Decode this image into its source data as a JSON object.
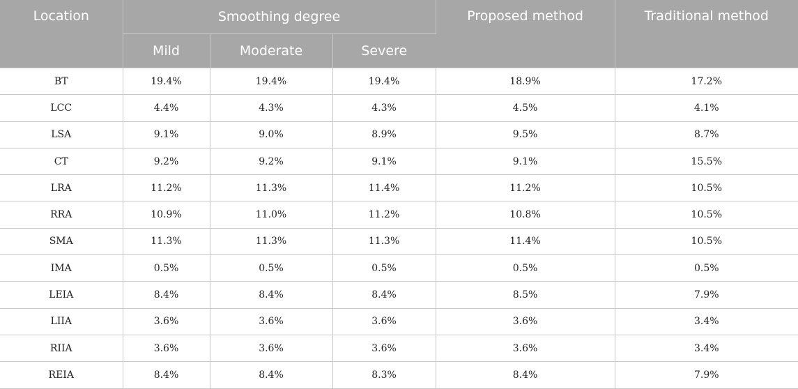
{
  "headers": {
    "location": "Location",
    "smoothing_degree": "Smoothing degree",
    "mild": "Mild",
    "moderate": "Moderate",
    "severe": "Severe",
    "proposed": "Proposed method",
    "traditional": "Traditional method"
  },
  "rows": [
    {
      "location": "BT",
      "mild": "19.4%",
      "moderate": "19.4%",
      "severe": "19.4%",
      "proposed": "18.9%",
      "traditional": "17.2%"
    },
    {
      "location": "LCC",
      "mild": "4.4%",
      "moderate": "4.3%",
      "severe": "4.3%",
      "proposed": "4.5%",
      "traditional": "4.1%"
    },
    {
      "location": "LSA",
      "mild": "9.1%",
      "moderate": "9.0%",
      "severe": "8.9%",
      "proposed": "9.5%",
      "traditional": "8.7%"
    },
    {
      "location": "CT",
      "mild": "9.2%",
      "moderate": "9.2%",
      "severe": "9.1%",
      "proposed": "9.1%",
      "traditional": "15.5%"
    },
    {
      "location": "LRA",
      "mild": "11.2%",
      "moderate": "11.3%",
      "severe": "11.4%",
      "proposed": "11.2%",
      "traditional": "10.5%"
    },
    {
      "location": "RRA",
      "mild": "10.9%",
      "moderate": "11.0%",
      "severe": "11.2%",
      "proposed": "10.8%",
      "traditional": "10.5%"
    },
    {
      "location": "SMA",
      "mild": "11.3%",
      "moderate": "11.3%",
      "severe": "11.3%",
      "proposed": "11.4%",
      "traditional": "10.5%"
    },
    {
      "location": "IMA",
      "mild": "0.5%",
      "moderate": "0.5%",
      "severe": "0.5%",
      "proposed": "0.5%",
      "traditional": "0.5%"
    },
    {
      "location": "LEIA",
      "mild": "8.4%",
      "moderate": "8.4%",
      "severe": "8.4%",
      "proposed": "8.5%",
      "traditional": "7.9%"
    },
    {
      "location": "LIIA",
      "mild": "3.6%",
      "moderate": "3.6%",
      "severe": "3.6%",
      "proposed": "3.6%",
      "traditional": "3.4%"
    },
    {
      "location": "RIIA",
      "mild": "3.6%",
      "moderate": "3.6%",
      "severe": "3.6%",
      "proposed": "3.6%",
      "traditional": "3.4%"
    },
    {
      "location": "REIA",
      "mild": "8.4%",
      "moderate": "8.4%",
      "severe": "8.3%",
      "proposed": "8.4%",
      "traditional": "7.9%"
    }
  ]
}
